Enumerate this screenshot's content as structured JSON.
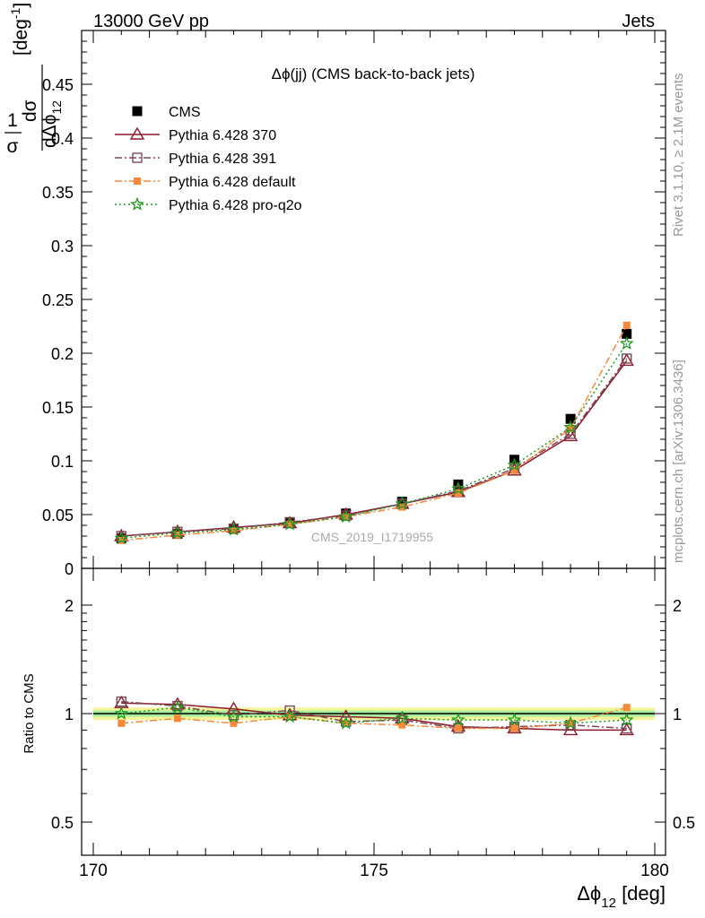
{
  "header": {
    "left": "13000 GeV pp",
    "right": "Jets"
  },
  "side": {
    "rivet": "Rivet 3.1.10, ≥ 2.1M events",
    "mcplots": "mcplots.cern.ch [arXiv:1306.3436]"
  },
  "chart_data": [
    {
      "type": "line",
      "title": "Δϕ(jj) (CMS back-to-back jets)",
      "ylabel_main": "1/σ dσ/dΔϕ12 [deg⁻¹]",
      "watermark": "CMS_2019_I1719955",
      "xlim": [
        170,
        180
      ],
      "ylim": [
        0,
        0.5
      ],
      "y_ticks": [
        "0",
        "0.05",
        "0.1",
        "0.15",
        "0.2",
        "0.25",
        "0.3",
        "0.35",
        "0.4",
        "0.45"
      ],
      "legend_position": "top-left",
      "x": [
        170.5,
        171.5,
        172.5,
        173.5,
        174.5,
        175.5,
        176.5,
        177.5,
        178.5,
        179.5
      ],
      "series": [
        {
          "name": "CMS",
          "color": "#000000",
          "marker": "square",
          "dash": "none",
          "values": [
            0.028,
            0.032,
            0.037,
            0.042,
            0.051,
            0.062,
            0.078,
            0.101,
            0.139,
            0.218
          ]
        },
        {
          "name": "Pythia 6.428 370",
          "color": "#8b1a2a",
          "marker": "triangle-open",
          "dash": "solid",
          "values": [
            0.03,
            0.034,
            0.038,
            0.042,
            0.05,
            0.06,
            0.071,
            0.091,
            0.123,
            0.193
          ]
        },
        {
          "name": "Pythia 6.428 391",
          "color": "#7a4a5a",
          "marker": "square-open",
          "dash": "dashdot",
          "values": [
            0.03,
            0.034,
            0.037,
            0.043,
            0.049,
            0.06,
            0.072,
            0.093,
            0.125,
            0.195
          ]
        },
        {
          "name": "Pythia 6.428 default",
          "color": "#f7893a",
          "marker": "square-small",
          "dash": "dashdot",
          "values": [
            0.026,
            0.031,
            0.035,
            0.041,
            0.048,
            0.057,
            0.07,
            0.091,
            0.13,
            0.226
          ]
        },
        {
          "name": "Pythia 6.428 pro-q2o",
          "color": "#1f9a1f",
          "marker": "star-open",
          "dash": "dotted",
          "values": [
            0.028,
            0.033,
            0.036,
            0.041,
            0.048,
            0.06,
            0.074,
            0.096,
            0.131,
            0.209
          ]
        }
      ]
    },
    {
      "type": "line",
      "xlabel": "Δϕ12 [deg]",
      "ylabel": "Ratio to CMS",
      "xlim": [
        170,
        180
      ],
      "ylim": [
        0.4,
        2.3
      ],
      "x_ticks": [
        "170",
        "175",
        "180"
      ],
      "y_ticks": [
        "0.5",
        "1",
        "2"
      ],
      "band_inner": 0.02,
      "band_outer": 0.04,
      "x": [
        170.5,
        171.5,
        172.5,
        173.5,
        174.5,
        175.5,
        176.5,
        177.5,
        178.5,
        179.5
      ],
      "series": [
        {
          "name": "Pythia 6.428 370",
          "values": [
            1.07,
            1.06,
            1.03,
            0.99,
            0.98,
            0.97,
            0.92,
            0.91,
            0.9,
            0.9
          ]
        },
        {
          "name": "Pythia 6.428 391",
          "values": [
            1.08,
            1.05,
            0.99,
            1.02,
            0.95,
            0.96,
            0.91,
            0.92,
            0.93,
            0.91
          ]
        },
        {
          "name": "Pythia 6.428 default",
          "values": [
            0.94,
            0.97,
            0.94,
            0.98,
            0.94,
            0.93,
            0.91,
            0.91,
            0.94,
            1.04
          ]
        },
        {
          "name": "Pythia 6.428 pro-q2o",
          "values": [
            1.0,
            1.04,
            0.98,
            0.98,
            0.94,
            0.97,
            0.96,
            0.96,
            0.94,
            0.96
          ]
        }
      ]
    }
  ]
}
